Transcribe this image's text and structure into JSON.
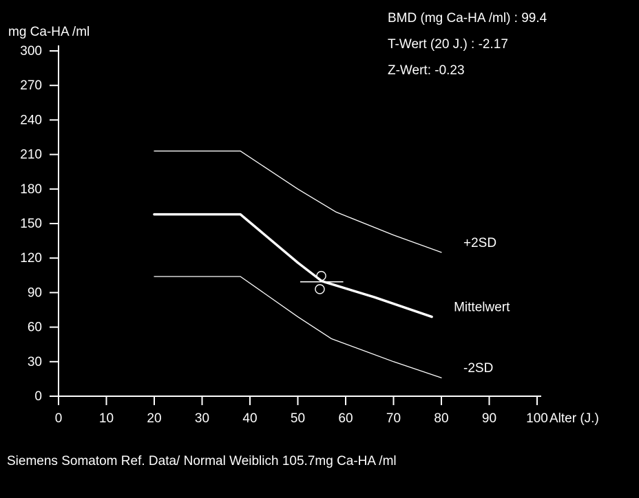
{
  "window": {
    "background": "#000000",
    "foreground": "#ffffff"
  },
  "info": {
    "bmd_line": "BMD (mg Ca-HA /ml) : 99.4",
    "t_line": "T-Wert (20 J.) : -2.17",
    "z_line": "Z-Wert: -0.23"
  },
  "footer": {
    "caption": "Siemens Somatom Ref. Data/ Normal Weiblich 105.7mg Ca-HA /ml"
  },
  "chart_data": {
    "type": "line",
    "title": "",
    "xlabel": "Alter (J.)",
    "ylabel": "mg Ca-HA /ml",
    "xlim": [
      0,
      100
    ],
    "ylim": [
      0,
      300
    ],
    "x_ticks": [
      0,
      10,
      20,
      30,
      40,
      50,
      60,
      70,
      80,
      90,
      100
    ],
    "y_ticks": [
      0,
      30,
      60,
      90,
      120,
      150,
      180,
      210,
      240,
      270,
      300
    ],
    "grid": false,
    "line_color": "#ffffff",
    "legend_position": "labels-right-of-curve-ends",
    "series": [
      {
        "name": "+2SD",
        "style": "thin",
        "x": [
          20,
          38,
          50,
          58,
          70,
          80
        ],
        "y": [
          213,
          213,
          180,
          160,
          140,
          125
        ]
      },
      {
        "name": "Mittelwert",
        "style": "thick",
        "x": [
          20,
          38,
          50,
          55,
          66,
          78
        ],
        "y": [
          158,
          158,
          116,
          100,
          86,
          69
        ]
      },
      {
        "name": "-2SD",
        "style": "thin",
        "x": [
          20,
          38,
          50,
          57,
          70,
          80
        ],
        "y": [
          104,
          104,
          69,
          50,
          30,
          16
        ]
      }
    ],
    "patient_marker": {
      "age": 55,
      "bmd": 99.4,
      "crosshair": {
        "age_from": 50.5,
        "age_to": 59.5,
        "value": 99.4
      },
      "points": [
        {
          "age": 54.9,
          "value": 104.5
        },
        {
          "age": 54.6,
          "value": 93
        }
      ]
    }
  }
}
